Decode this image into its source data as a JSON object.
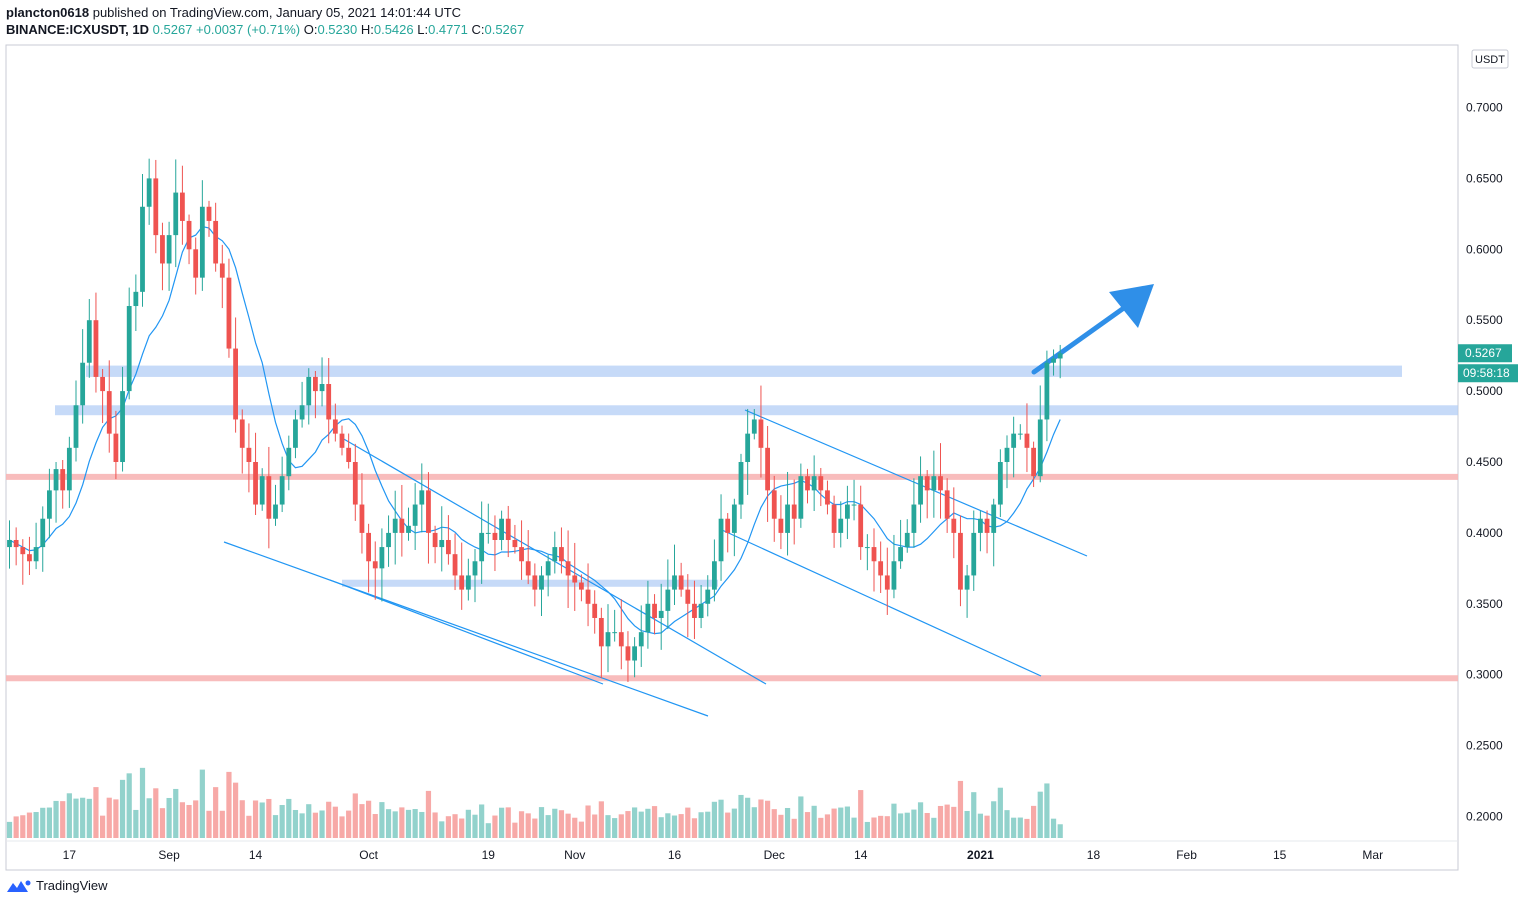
{
  "header": {
    "publisher": "plancton0618",
    "published_on": "published on TradingView.com, January 05, 2021 14:01:44 UTC",
    "symbol": "BINANCE:ICXUSDT, 1D",
    "last": "0.5267",
    "change": "+0.0037 (+0.71%)",
    "o_label": "O:",
    "o": "0.5230",
    "h_label": "H:",
    "h": "0.5426",
    "l_label": "L:",
    "l": "0.4771",
    "c_label": "C:",
    "c": "0.5267"
  },
  "footer": {
    "logo_text": "TradingView"
  },
  "colors": {
    "up": "#26a69a",
    "down": "#ef5350",
    "ma": "#2196f3",
    "zone": "#b3cef5",
    "support": "#f7b5b5",
    "arrow": "#2f8fe8"
  },
  "price_axis": {
    "unit": "USDT",
    "ticks": [
      "0.7000",
      "0.6500",
      "0.6000",
      "0.5500",
      "0.5000",
      "0.4500",
      "0.4000",
      "0.3500",
      "0.3000",
      "0.2500",
      "0.2000"
    ],
    "last_price_label": "0.5267",
    "countdown_label": "09:58:18"
  },
  "chart_data": {
    "type": "candlestick",
    "interval": "1D",
    "y_range": [
      0.19,
      0.745
    ],
    "time_ticks": [
      {
        "label": "17",
        "x": "2020-08-17"
      },
      {
        "label": "Sep",
        "x": "2020-09-01"
      },
      {
        "label": "14",
        "x": "2020-09-14"
      },
      {
        "label": "Oct",
        "x": "2020-10-01"
      },
      {
        "label": "19",
        "x": "2020-10-19"
      },
      {
        "label": "Nov",
        "x": "2020-11-01"
      },
      {
        "label": "16",
        "x": "2020-11-16"
      },
      {
        "label": "Dec",
        "x": "2020-12-01"
      },
      {
        "label": "14",
        "x": "2020-12-14"
      },
      {
        "label": "2021",
        "x": "2021-01-01"
      },
      {
        "label": "18",
        "x": "2021-01-18"
      },
      {
        "label": "Feb",
        "x": "2021-02-01"
      },
      {
        "label": "15",
        "x": "2021-02-15"
      },
      {
        "label": "Mar",
        "x": "2021-03-01"
      }
    ],
    "first_date": "2020-08-08",
    "closes": [
      0.395,
      0.39,
      0.385,
      0.38,
      0.39,
      0.41,
      0.43,
      0.445,
      0.43,
      0.46,
      0.49,
      0.52,
      0.55,
      0.51,
      0.5,
      0.47,
      0.45,
      0.5,
      0.56,
      0.57,
      0.63,
      0.65,
      0.61,
      0.59,
      0.61,
      0.64,
      0.62,
      0.6,
      0.58,
      0.63,
      0.62,
      0.59,
      0.58,
      0.53,
      0.48,
      0.46,
      0.45,
      0.42,
      0.44,
      0.41,
      0.42,
      0.44,
      0.46,
      0.48,
      0.49,
      0.51,
      0.5,
      0.505,
      0.48,
      0.47,
      0.46,
      0.45,
      0.42,
      0.4,
      0.38,
      0.375,
      0.39,
      0.4,
      0.41,
      0.4,
      0.405,
      0.42,
      0.43,
      0.4,
      0.39,
      0.395,
      0.385,
      0.37,
      0.36,
      0.37,
      0.38,
      0.4,
      0.4,
      0.395,
      0.41,
      0.395,
      0.39,
      0.38,
      0.37,
      0.36,
      0.37,
      0.38,
      0.39,
      0.38,
      0.37,
      0.365,
      0.36,
      0.35,
      0.34,
      0.32,
      0.33,
      0.33,
      0.32,
      0.31,
      0.32,
      0.33,
      0.35,
      0.34,
      0.345,
      0.36,
      0.37,
      0.36,
      0.35,
      0.34,
      0.35,
      0.36,
      0.38,
      0.41,
      0.4,
      0.42,
      0.45,
      0.47,
      0.48,
      0.46,
      0.43,
      0.41,
      0.4,
      0.42,
      0.41,
      0.44,
      0.43,
      0.44,
      0.43,
      0.42,
      0.4,
      0.41,
      0.42,
      0.42,
      0.39,
      0.39,
      0.38,
      0.37,
      0.36,
      0.38,
      0.39,
      0.4,
      0.42,
      0.44,
      0.43,
      0.44,
      0.43,
      0.41,
      0.4,
      0.36,
      0.37,
      0.4,
      0.41,
      0.4,
      0.42,
      0.45,
      0.46,
      0.47,
      0.47,
      0.46,
      0.44,
      0.48,
      0.52,
      0.523,
      0.5267
    ],
    "levels": [
      {
        "kind": "resistance_zone",
        "y_low": 0.51,
        "y_high": 0.518
      },
      {
        "kind": "resistance_zone",
        "y_low": 0.483,
        "y_high": 0.49
      },
      {
        "kind": "support_zone",
        "y_low": 0.362,
        "y_high": 0.367
      },
      {
        "kind": "support_line",
        "y": 0.4395
      },
      {
        "kind": "support_line",
        "y": 0.2975
      }
    ],
    "annotations": [
      {
        "kind": "arrow",
        "direction": "up"
      }
    ]
  }
}
